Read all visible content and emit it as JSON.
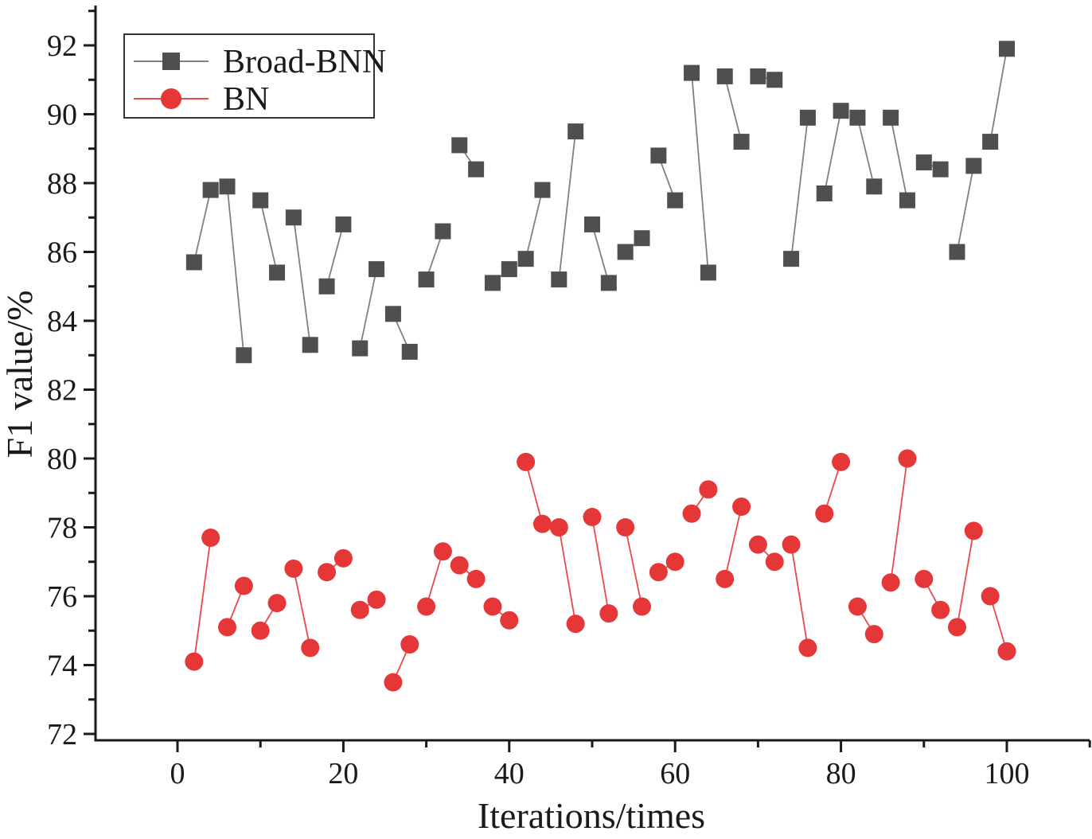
{
  "figure": {
    "background": "#ffffff"
  },
  "chart_data": {
    "type": "scatter",
    "title": "",
    "xlabel": "Iterations/times",
    "ylabel": "F1 value/%",
    "xlim": [
      -10,
      110
    ],
    "ylim": [
      72,
      93.2
    ],
    "grid": false,
    "legend_position": "top-left",
    "connect": "pairs",
    "xticks": [
      0,
      20,
      40,
      60,
      80,
      100
    ],
    "xminorticks": [
      10,
      30,
      50,
      70,
      90,
      110
    ],
    "yticks": [
      72,
      74,
      76,
      78,
      80,
      82,
      84,
      86,
      88,
      90,
      92
    ],
    "yminorticks": [
      73,
      75,
      77,
      79,
      81,
      83,
      85,
      87,
      89,
      91,
      93
    ],
    "x": [
      2,
      4,
      6,
      8,
      10,
      12,
      14,
      16,
      18,
      20,
      22,
      24,
      26,
      28,
      30,
      32,
      34,
      36,
      38,
      40,
      42,
      44,
      46,
      48,
      50,
      52,
      54,
      56,
      58,
      60,
      62,
      64,
      66,
      68,
      70,
      72,
      74,
      76,
      78,
      80,
      82,
      84,
      86,
      88,
      90,
      92,
      94,
      96,
      98,
      100
    ],
    "series": [
      {
        "name": "Broad-BNN",
        "marker": "square",
        "marker_color": "#4f4f4f",
        "line_color": "#808080",
        "values": [
          85.7,
          87.8,
          87.9,
          83.0,
          87.5,
          85.4,
          87.0,
          83.3,
          85.0,
          86.8,
          83.2,
          85.5,
          84.2,
          83.1,
          85.2,
          86.6,
          89.1,
          88.4,
          85.1,
          85.5,
          85.8,
          87.8,
          85.2,
          89.5,
          86.8,
          85.1,
          86.0,
          86.4,
          88.8,
          87.5,
          91.2,
          85.4,
          91.1,
          89.2,
          91.1,
          91.0,
          85.8,
          89.9,
          87.7,
          90.1,
          89.9,
          87.9,
          89.9,
          87.5,
          88.6,
          88.4,
          86.0,
          88.5,
          89.2,
          91.9
        ]
      },
      {
        "name": "BN",
        "marker": "circle",
        "marker_color": "#e63738",
        "line_color": "#e8494b",
        "values": [
          74.1,
          77.7,
          75.1,
          76.3,
          75.0,
          75.8,
          76.8,
          74.5,
          76.7,
          77.1,
          75.6,
          75.9,
          73.5,
          74.6,
          75.7,
          77.3,
          76.9,
          76.5,
          75.7,
          75.3,
          79.9,
          78.1,
          78.0,
          75.2,
          78.3,
          75.5,
          78.0,
          75.7,
          76.7,
          77.0,
          78.4,
          79.1,
          76.5,
          78.6,
          77.5,
          77.0,
          77.5,
          74.5,
          78.4,
          79.9,
          75.7,
          74.9,
          76.4,
          80.0,
          76.5,
          75.6,
          75.1,
          77.9,
          76.0,
          74.4
        ]
      }
    ]
  },
  "axes": {
    "x": {
      "title": "Iterations/times"
    },
    "y": {
      "title": "F1 value/%"
    }
  },
  "legend": {
    "items": [
      {
        "label": "Broad-BNN"
      },
      {
        "label": "BN"
      }
    ]
  },
  "colors": {
    "axis": "#1a1a1a",
    "broad_bnn_marker": "#4f4f4f",
    "broad_bnn_line": "#808080",
    "bn_marker": "#e63738",
    "bn_line": "#e8494b",
    "legend_border": "#333333"
  }
}
